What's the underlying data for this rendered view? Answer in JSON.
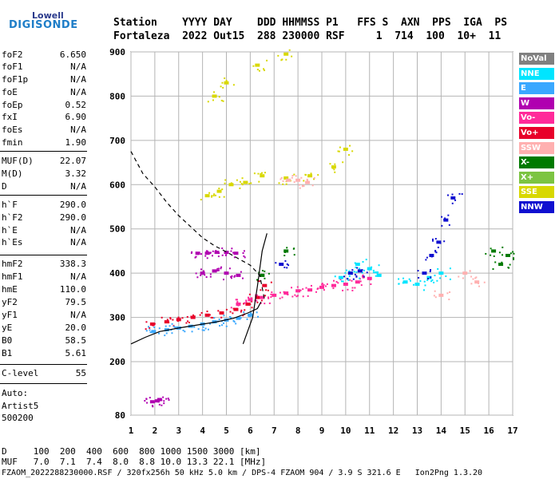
{
  "logo": {
    "top": "Lowell",
    "bottom": "DIGISONDE"
  },
  "header": {
    "line1": "Station    YYYY DAY    DDD HHMMSS P1   FFS S  AXN  PPS  IGA  PS",
    "line2": "Fortaleza  2022 Out15  288 230000 RSF     1  714  100  10+  11"
  },
  "params": [
    {
      "name": "foF2",
      "value": "6.650"
    },
    {
      "name": "foF1",
      "value": "N/A"
    },
    {
      "name": "foF1p",
      "value": "N/A"
    },
    {
      "name": "foE",
      "value": "N/A"
    },
    {
      "name": "foEp",
      "value": "0.52"
    },
    {
      "name": "fxI",
      "value": "6.90"
    },
    {
      "name": "foEs",
      "value": "N/A"
    },
    {
      "name": "fmin",
      "value": "1.90"
    },
    {
      "name": "MUF(D)",
      "value": "22.07"
    },
    {
      "name": "M(D)",
      "value": "3.32"
    },
    {
      "name": "D",
      "value": "N/A"
    },
    {
      "name": "h`F",
      "value": "290.0"
    },
    {
      "name": "h`F2",
      "value": "290.0"
    },
    {
      "name": "h`E",
      "value": "N/A"
    },
    {
      "name": "h`Es",
      "value": "N/A"
    },
    {
      "name": "hmF2",
      "value": "338.3"
    },
    {
      "name": "hmF1",
      "value": "N/A"
    },
    {
      "name": "hmE",
      "value": "110.0"
    },
    {
      "name": "yF2",
      "value": "79.5"
    },
    {
      "name": "yF1",
      "value": "N/A"
    },
    {
      "name": "yE",
      "value": "20.0"
    },
    {
      "name": "B0",
      "value": "58.5"
    },
    {
      "name": "B1",
      "value": "5.61"
    }
  ],
  "clevel": {
    "name": "C-level",
    "value": "55"
  },
  "auto": {
    "l1": "Auto:",
    "l2": "Artist5",
    "l3": "500200"
  },
  "footer": {
    "d_row": "D     100  200  400  600  800 1000 1500 3000 [km]",
    "muf_row": "MUF   7.0  7.1  7.4  8.0  8.8 10.0 13.3 22.1 [MHz]",
    "file_row": "FZAOM_2022288230000.RSF / 320fx256h 50 kHz 5.0 km / DPS-4 FZAOM 904 / 3.9 S 321.6 E   Ion2Png 1.3.20"
  },
  "legend": [
    {
      "label": "NoVal",
      "color": "#808080",
      "text": "#ffffff"
    },
    {
      "label": "NNE",
      "color": "#00e5ff",
      "text": "#ffffff"
    },
    {
      "label": "E",
      "color": "#3aa8ff",
      "text": "#ffffff"
    },
    {
      "label": "W",
      "color": "#b000b0",
      "text": "#ffffff"
    },
    {
      "label": "Vo-",
      "color": "#ff2a9a",
      "text": "#ffffff"
    },
    {
      "label": "Vo+",
      "color": "#e8002a",
      "text": "#ffffff"
    },
    {
      "label": "SSW",
      "color": "#ffb0b0",
      "text": "#ffffff"
    },
    {
      "label": "X-",
      "color": "#007a00",
      "text": "#ffffff"
    },
    {
      "label": "X+",
      "color": "#7cc442",
      "text": "#ffffff"
    },
    {
      "label": "SSE",
      "color": "#d8d800",
      "text": "#ffffff"
    },
    {
      "label": "NNW",
      "color": "#1010d0",
      "text": "#ffffff"
    }
  ],
  "chart_data": {
    "type": "scatter",
    "x_ticks": [
      1,
      2,
      3,
      4,
      5,
      6,
      7,
      8,
      9,
      10,
      11,
      12,
      13,
      14,
      15,
      16,
      17
    ],
    "y_ticks": [
      80,
      200,
      300,
      400,
      500,
      600,
      700,
      800,
      900
    ],
    "xlim": [
      1,
      17
    ],
    "ylim": [
      80,
      900
    ],
    "y_scale": "piecewise-linear",
    "grid": true,
    "trace_clusters": [
      {
        "name": "O-trace F2",
        "color": "#e8002a",
        "points": [
          [
            1.9,
            285
          ],
          [
            2.5,
            290
          ],
          [
            3.0,
            295
          ],
          [
            3.6,
            300
          ],
          [
            4.2,
            305
          ],
          [
            4.8,
            310
          ],
          [
            5.4,
            318
          ],
          [
            5.9,
            330
          ],
          [
            6.3,
            345
          ],
          [
            6.6,
            372
          ]
        ]
      },
      {
        "name": "E trace",
        "color": "#3aa8ff",
        "points": [
          [
            1.95,
            268
          ],
          [
            2.5,
            272
          ],
          [
            3.0,
            276
          ],
          [
            3.5,
            280
          ],
          [
            4.0,
            285
          ],
          [
            4.5,
            290
          ],
          [
            5.0,
            294
          ],
          [
            5.5,
            298
          ],
          [
            6.0,
            305
          ]
        ]
      },
      {
        "name": "X-trace",
        "color": "#ff2a9a",
        "points": [
          [
            5.5,
            330
          ],
          [
            6.0,
            340
          ],
          [
            6.5,
            345
          ],
          [
            7.0,
            350
          ],
          [
            7.5,
            355
          ],
          [
            8.0,
            360
          ],
          [
            8.5,
            362
          ],
          [
            9.0,
            368
          ],
          [
            9.5,
            372
          ],
          [
            10.0,
            375
          ],
          [
            10.5,
            380
          ],
          [
            11.0,
            388
          ]
        ]
      },
      {
        "name": "W echoes",
        "color": "#b000b0",
        "points": [
          [
            3.8,
            445
          ],
          [
            4.2,
            445
          ],
          [
            4.6,
            447
          ],
          [
            5.0,
            447
          ],
          [
            5.4,
            445
          ],
          [
            4.0,
            400
          ],
          [
            4.5,
            405
          ],
          [
            5.0,
            400
          ],
          [
            5.5,
            395
          ]
        ]
      },
      {
        "name": "NNE spread",
        "color": "#00e5ff",
        "points": [
          [
            9.8,
            390
          ],
          [
            10.2,
            400
          ],
          [
            10.5,
            420
          ],
          [
            11.0,
            410
          ],
          [
            11.4,
            395
          ],
          [
            12.5,
            380
          ],
          [
            13.0,
            375
          ],
          [
            13.5,
            390
          ],
          [
            14.0,
            400
          ]
        ]
      },
      {
        "name": "NNW rise",
        "color": "#1010d0",
        "points": [
          [
            13.3,
            400
          ],
          [
            13.6,
            440
          ],
          [
            13.9,
            470
          ],
          [
            14.2,
            520
          ],
          [
            14.5,
            570
          ],
          [
            10.2,
            400
          ],
          [
            10.6,
            405
          ],
          [
            7.3,
            420
          ]
        ]
      },
      {
        "name": "Multi-hop",
        "color": "#d8d800",
        "points": [
          [
            4.2,
            575
          ],
          [
            4.7,
            585
          ],
          [
            5.2,
            600
          ],
          [
            5.8,
            605
          ],
          [
            6.5,
            620
          ],
          [
            7.5,
            615
          ],
          [
            8.5,
            620
          ],
          [
            9.5,
            640
          ],
          [
            10.0,
            680
          ],
          [
            4.5,
            800
          ],
          [
            5.0,
            830
          ],
          [
            6.3,
            870
          ],
          [
            7.5,
            895
          ]
        ]
      },
      {
        "name": "SSW",
        "color": "#ffb0b0",
        "points": [
          [
            7.6,
            610
          ],
          [
            8.0,
            610
          ],
          [
            8.4,
            605
          ],
          [
            15.0,
            400
          ],
          [
            15.5,
            380
          ],
          [
            14.0,
            350
          ]
        ]
      },
      {
        "name": "X- spread",
        "color": "#007a00",
        "points": [
          [
            16.2,
            450
          ],
          [
            16.5,
            420
          ],
          [
            16.8,
            440
          ],
          [
            7.5,
            450
          ],
          [
            6.5,
            395
          ]
        ]
      },
      {
        "name": "Low echoes",
        "color": "#b000b0",
        "points": [
          [
            1.9,
            110
          ],
          [
            2.1,
            112
          ],
          [
            2.2,
            115
          ]
        ]
      }
    ],
    "curves": [
      {
        "name": "profile dashed",
        "style": "dashed",
        "points": [
          [
            1,
            675
          ],
          [
            1.5,
            625
          ],
          [
            2.0,
            595
          ],
          [
            2.5,
            560
          ],
          [
            3.0,
            530
          ],
          [
            3.5,
            505
          ],
          [
            4.0,
            480
          ],
          [
            4.5,
            462
          ],
          [
            5.0,
            448
          ],
          [
            5.5,
            433
          ],
          [
            6.0,
            418
          ],
          [
            6.4,
            395
          ],
          [
            6.6,
            340
          ]
        ]
      },
      {
        "name": "true height",
        "style": "solid",
        "points": [
          [
            1.0,
            240
          ],
          [
            1.6,
            255
          ],
          [
            2.2,
            268
          ],
          [
            3.0,
            276
          ],
          [
            3.8,
            283
          ],
          [
            4.6,
            290
          ],
          [
            5.3,
            298
          ],
          [
            5.9,
            310
          ],
          [
            6.3,
            320
          ],
          [
            6.45,
            335
          ]
        ]
      },
      {
        "name": "x-profile",
        "style": "solid",
        "points": [
          [
            5.7,
            240
          ],
          [
            5.9,
            270
          ],
          [
            6.1,
            300
          ],
          [
            6.3,
            370
          ],
          [
            6.5,
            450
          ],
          [
            6.7,
            490
          ]
        ]
      }
    ]
  }
}
